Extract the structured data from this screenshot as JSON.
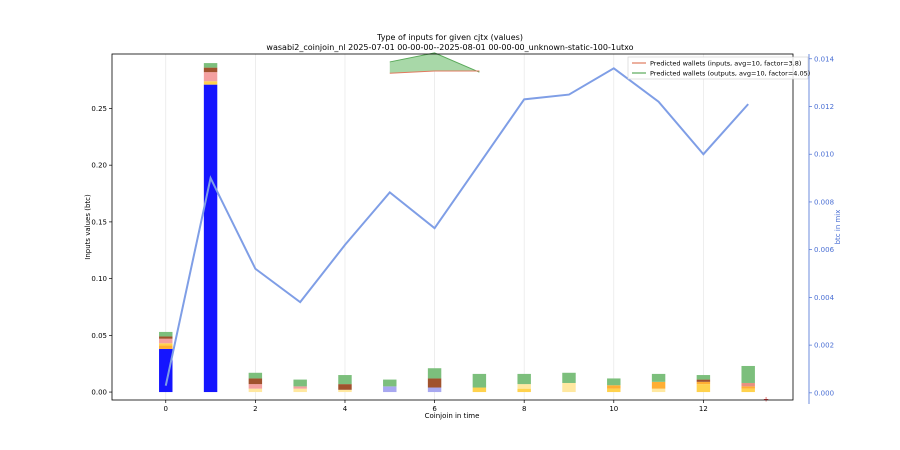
{
  "chart_data": {
    "type": "bar",
    "title": "Type of inputs for given cjtx (values)",
    "subtitle": "wasabi2_coinjoin_nl 2025-07-01 00-00-00--2025-08-01 00-00-00_unknown-static-100-1utxo",
    "xlabel": "Coinjoin in time",
    "ylabel": "Inputs values (btc)",
    "y2label": "btc in mix",
    "xlim": [
      -1.2,
      14
    ],
    "ylim": [
      -0.007,
      0.298
    ],
    "y2lim": [
      -0.0003,
      0.0142
    ],
    "xticks": [
      0,
      2,
      4,
      6,
      8,
      10,
      12
    ],
    "yticks": [
      "0.00",
      "0.05",
      "0.10",
      "0.15",
      "0.20",
      "0.25"
    ],
    "y2ticks": [
      "0.000",
      "0.002",
      "0.004",
      "0.006",
      "0.008",
      "0.010",
      "0.012",
      "0.014"
    ],
    "grid": "vertical lines at x ticks",
    "legend_position": "top-right",
    "legend": [
      {
        "label": "Predicted wallets (inputs, avg=10, factor=3.8)",
        "color": "#e07a5f"
      },
      {
        "label": "Predicted wallets (outputs, avg=10, factor=4.05)",
        "color": "#5aa95a"
      }
    ],
    "stack_colors": {
      "fresh": "#1515ff",
      "light_blue": "#a8a8f0",
      "gold": "#ffd24d",
      "light_yellow": "#ffe8a0",
      "orange": "#ffae33",
      "pink": "#f4a0a0",
      "salmon": "#e89080",
      "brown": "#a0522d",
      "green": "#7cbf7c"
    },
    "bars": [
      {
        "x": 0,
        "segments": [
          [
            "fresh",
            0.038
          ],
          [
            "orange",
            0.003
          ],
          [
            "gold",
            0.002
          ],
          [
            "pink",
            0.004
          ],
          [
            "brown",
            0.002
          ],
          [
            "green",
            0.004
          ]
        ]
      },
      {
        "x": 1,
        "segments": [
          [
            "fresh",
            0.271
          ],
          [
            "gold",
            0.003
          ],
          [
            "pink",
            0.008
          ],
          [
            "brown",
            0.004
          ],
          [
            "green",
            0.004
          ]
        ]
      },
      {
        "x": 2,
        "segments": [
          [
            "light_yellow",
            0.003
          ],
          [
            "pink",
            0.004
          ],
          [
            "brown",
            0.005
          ],
          [
            "green",
            0.005
          ]
        ]
      },
      {
        "x": 3,
        "segments": [
          [
            "light_yellow",
            0.003
          ],
          [
            "pink",
            0.002
          ],
          [
            "green",
            0.006
          ]
        ]
      },
      {
        "x": 4,
        "segments": [
          [
            "light_yellow",
            0.002
          ],
          [
            "brown",
            0.005
          ],
          [
            "green",
            0.008
          ]
        ]
      },
      {
        "x": 5,
        "segments": [
          [
            "light_blue",
            0.005
          ],
          [
            "green",
            0.006
          ]
        ]
      },
      {
        "x": 6,
        "segments": [
          [
            "light_blue",
            0.004
          ],
          [
            "brown",
            0.008
          ],
          [
            "green",
            0.009
          ]
        ]
      },
      {
        "x": 7,
        "segments": [
          [
            "gold",
            0.004
          ],
          [
            "green",
            0.012
          ]
        ]
      },
      {
        "x": 8,
        "segments": [
          [
            "gold",
            0.003
          ],
          [
            "light_yellow",
            0.004
          ],
          [
            "green",
            0.009
          ]
        ]
      },
      {
        "x": 9,
        "segments": [
          [
            "light_yellow",
            0.008
          ],
          [
            "green",
            0.009
          ]
        ]
      },
      {
        "x": 10,
        "segments": [
          [
            "gold",
            0.003
          ],
          [
            "orange",
            0.003
          ],
          [
            "green",
            0.006
          ]
        ]
      },
      {
        "x": 11,
        "segments": [
          [
            "light_yellow",
            0.003
          ],
          [
            "orange",
            0.006
          ],
          [
            "green",
            0.007
          ]
        ]
      },
      {
        "x": 12,
        "segments": [
          [
            "gold",
            0.007
          ],
          [
            "orange",
            0.002
          ],
          [
            "brown",
            0.002
          ],
          [
            "green",
            0.004
          ]
        ]
      },
      {
        "x": 13,
        "segments": [
          [
            "gold",
            0.003
          ],
          [
            "orange",
            0.002
          ],
          [
            "salmon",
            0.003
          ],
          [
            "green",
            0.015
          ]
        ]
      }
    ],
    "series": [
      {
        "axis": "right",
        "color": "#7f9ee6",
        "x": [
          0,
          1,
          2,
          3,
          4,
          5,
          6,
          7,
          8,
          9,
          10,
          11,
          12,
          13
        ],
        "values": [
          0.0003,
          0.009,
          0.0052,
          0.0038,
          0.0062,
          0.0084,
          0.0069,
          0.0096,
          0.0123,
          0.0125,
          0.0136,
          0.0122,
          0.01,
          0.0121
        ]
      }
    ],
    "predicted_wallets": {
      "inputs": {
        "color": "#e07a5f",
        "x": [
          5,
          6,
          7
        ],
        "values": [
          0.281,
          0.283,
          0.283
        ]
      },
      "outputs": {
        "color": "#5aa95a",
        "x": [
          5,
          6,
          7
        ],
        "values": [
          0.291,
          0.299,
          0.282
        ]
      }
    },
    "marker": {
      "x": 13.4,
      "y": -0.005,
      "color": "#d62728"
    }
  }
}
